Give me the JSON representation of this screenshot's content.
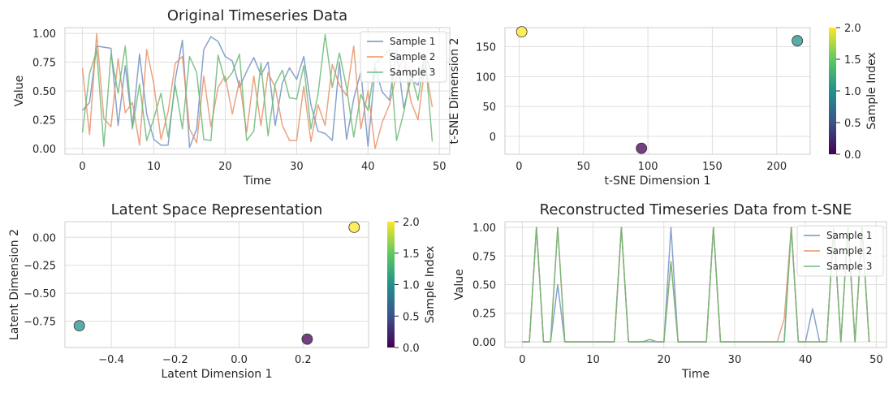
{
  "chart_data": [
    {
      "type": "line",
      "title": "Original Timeseries Data",
      "xlabel": "Time",
      "ylabel": "Value",
      "xlim": [
        -2.45,
        51.45
      ],
      "ylim": [
        -0.05,
        1.05
      ],
      "xticks": [
        0,
        10,
        20,
        30,
        40,
        50
      ],
      "yticks": [
        0.0,
        0.25,
        0.5,
        0.75,
        1.0
      ],
      "xtick_labels": [
        "0",
        "10",
        "20",
        "30",
        "40",
        "50"
      ],
      "ytick_labels": [
        "0.00",
        "0.25",
        "0.50",
        "0.75",
        "1.00"
      ],
      "grid": true,
      "legend": "top-right",
      "x": [
        0,
        1,
        2,
        3,
        4,
        5,
        6,
        7,
        8,
        9,
        10,
        11,
        12,
        13,
        14,
        15,
        16,
        17,
        18,
        19,
        20,
        21,
        22,
        23,
        24,
        25,
        26,
        27,
        28,
        29,
        30,
        31,
        32,
        33,
        34,
        35,
        36,
        37,
        38,
        39,
        40,
        41,
        42,
        43,
        44,
        45,
        46,
        47,
        48,
        49
      ],
      "series": [
        {
          "name": "Sample 1",
          "color": "#7393c2",
          "values": [
            0.33,
            0.4,
            0.89,
            0.88,
            0.87,
            0.2,
            0.72,
            0.19,
            0.82,
            0.3,
            0.08,
            0.03,
            0.03,
            0.6,
            0.94,
            0.01,
            0.17,
            0.86,
            0.97,
            0.93,
            0.8,
            0.76,
            0.53,
            0.67,
            0.79,
            0.64,
            0.75,
            0.2,
            0.57,
            0.7,
            0.6,
            0.8,
            0.38,
            0.15,
            0.13,
            0.07,
            0.75,
            0.08,
            0.43,
            0.67,
            0.02,
            0.7,
            0.49,
            0.42,
            0.85,
            0.35,
            0.6,
            0.55,
            0.81,
            0.65
          ]
        },
        {
          "name": "Sample 2",
          "color": "#e8936b",
          "values": [
            0.7,
            0.12,
            1.0,
            0.26,
            0.19,
            0.78,
            0.31,
            0.4,
            0.03,
            0.86,
            0.56,
            0.08,
            0.32,
            0.74,
            0.8,
            0.17,
            0.05,
            0.63,
            0.19,
            0.53,
            0.63,
            0.3,
            0.59,
            0.14,
            0.63,
            0.2,
            0.66,
            0.53,
            0.2,
            0.07,
            0.07,
            0.54,
            0.06,
            0.38,
            0.2,
            0.73,
            0.55,
            0.46,
            0.89,
            0.17,
            0.5,
            0.0,
            0.23,
            0.38,
            0.64,
            0.8,
            0.41,
            0.25,
            0.72,
            0.36
          ]
        },
        {
          "name": "Sample 3",
          "color": "#6dbb78",
          "values": [
            0.14,
            0.65,
            0.85,
            0.02,
            0.82,
            0.48,
            0.89,
            0.17,
            0.56,
            0.07,
            0.26,
            0.48,
            0.1,
            0.55,
            0.17,
            0.8,
            0.66,
            0.08,
            0.07,
            0.81,
            0.58,
            0.66,
            0.82,
            0.07,
            0.15,
            0.74,
            0.11,
            0.56,
            0.68,
            0.44,
            0.43,
            0.72,
            0.17,
            0.47,
            0.99,
            0.53,
            0.83,
            0.53,
            0.1,
            0.47,
            0.33,
            0.74,
            0.79,
            0.86,
            0.07,
            0.31,
            0.66,
            0.42,
            0.81,
            0.06
          ]
        }
      ]
    },
    {
      "type": "scatter",
      "title": "",
      "xlabel": "t-SNE Dimension 1",
      "ylabel": "t-SNE Dimension 2",
      "xlim": [
        -11,
        226
      ],
      "ylim": [
        -30,
        182
      ],
      "xticks": [
        0,
        50,
        100,
        150,
        200
      ],
      "yticks": [
        0,
        50,
        100,
        150
      ],
      "xtick_labels": [
        "0",
        "50",
        "100",
        "150",
        "200"
      ],
      "ytick_labels": [
        "0",
        "50",
        "100",
        "150"
      ],
      "grid": true,
      "points": [
        {
          "x": 95,
          "y": -20,
          "value": 0
        },
        {
          "x": 216,
          "y": 160,
          "value": 1
        },
        {
          "x": 2,
          "y": 175,
          "value": 2
        }
      ],
      "colorbar": {
        "label": "Sample Index",
        "min": 0.0,
        "max": 2.0,
        "ticks": [
          0.0,
          0.5,
          1.0,
          1.5,
          2.0
        ],
        "tick_labels": [
          "0.0",
          "0.5",
          "1.0",
          "1.5",
          "2.0"
        ]
      }
    },
    {
      "type": "scatter",
      "title": "Latent Space Representation",
      "xlabel": "Latent Dimension 1",
      "ylabel": "Latent Dimension 2",
      "xlim": [
        -0.545,
        0.405
      ],
      "ylim": [
        -0.985,
        0.14
      ],
      "xticks": [
        -0.4,
        -0.2,
        0.0,
        0.2
      ],
      "yticks": [
        -0.75,
        -0.5,
        -0.25,
        0.0
      ],
      "xtick_labels": [
        "−0.4",
        "−0.2",
        "0.0",
        "0.2"
      ],
      "ytick_labels": [
        "−0.75",
        "−0.50",
        "−0.25",
        "0.00"
      ],
      "grid": true,
      "points": [
        {
          "x": 0.213,
          "y": -0.91,
          "value": 0
        },
        {
          "x": -0.5,
          "y": -0.79,
          "value": 1
        },
        {
          "x": 0.36,
          "y": 0.09,
          "value": 2
        }
      ],
      "colorbar": {
        "label": "Sample Index",
        "min": 0.0,
        "max": 2.0,
        "ticks": [
          0.0,
          0.5,
          1.0,
          1.5,
          2.0
        ],
        "tick_labels": [
          "0.0",
          "0.5",
          "1.0",
          "1.5",
          "2.0"
        ]
      }
    },
    {
      "type": "line",
      "title": "Reconstructed Timeseries Data from t-SNE",
      "xlabel": "Time",
      "ylabel": "Value",
      "xlim": [
        -2.45,
        51.45
      ],
      "ylim": [
        -0.05,
        1.05
      ],
      "xticks": [
        0,
        10,
        20,
        30,
        40,
        50
      ],
      "yticks": [
        0.0,
        0.25,
        0.5,
        0.75,
        1.0
      ],
      "xtick_labels": [
        "0",
        "10",
        "20",
        "30",
        "40",
        "50"
      ],
      "ytick_labels": [
        "0.00",
        "0.25",
        "0.50",
        "0.75",
        "1.00"
      ],
      "grid": true,
      "legend": "top-right",
      "x": [
        0,
        1,
        2,
        3,
        4,
        5,
        6,
        7,
        8,
        9,
        10,
        11,
        12,
        13,
        14,
        15,
        16,
        17,
        18,
        19,
        20,
        21,
        22,
        23,
        24,
        25,
        26,
        27,
        28,
        29,
        30,
        31,
        32,
        33,
        34,
        35,
        36,
        37,
        38,
        39,
        40,
        41,
        42,
        43,
        44,
        45,
        46,
        47,
        48,
        49
      ],
      "series": [
        {
          "name": "Sample 1",
          "color": "#7393c2",
          "values": [
            0,
            0,
            1,
            0,
            0,
            0.5,
            0,
            0,
            0,
            0,
            0,
            0,
            0,
            0,
            1,
            0,
            0,
            0,
            0,
            0,
            0,
            1,
            0,
            0,
            0,
            0,
            0,
            1,
            0,
            0,
            0,
            0,
            0,
            0,
            0,
            0,
            0,
            0,
            1,
            0,
            0,
            0.29,
            0,
            0,
            1,
            0,
            1,
            0,
            1,
            0
          ]
        },
        {
          "name": "Sample 2",
          "color": "#e8936b",
          "values": [
            0,
            0,
            1,
            0,
            0,
            1,
            0,
            0,
            0,
            0,
            0,
            0,
            0,
            0,
            1,
            0,
            0,
            0,
            0.02,
            0,
            0,
            0.7,
            0,
            0,
            0,
            0,
            0,
            1,
            0,
            0,
            0,
            0,
            0,
            0,
            0,
            0,
            0,
            0.2,
            1,
            0,
            0,
            0,
            0,
            0,
            1,
            0,
            1,
            0,
            1,
            0
          ]
        },
        {
          "name": "Sample 3",
          "color": "#6dbb78",
          "values": [
            0,
            0,
            1,
            0,
            0,
            1,
            0,
            0,
            0,
            0,
            0,
            0,
            0,
            0,
            1,
            0,
            0,
            0,
            0.02,
            0,
            0,
            0.7,
            0,
            0,
            0,
            0,
            0,
            1,
            0,
            0,
            0,
            0,
            0,
            0,
            0,
            0,
            0,
            0,
            1,
            0,
            0,
            0,
            0,
            0,
            1,
            0,
            1,
            0,
            1,
            0
          ]
        }
      ]
    }
  ]
}
